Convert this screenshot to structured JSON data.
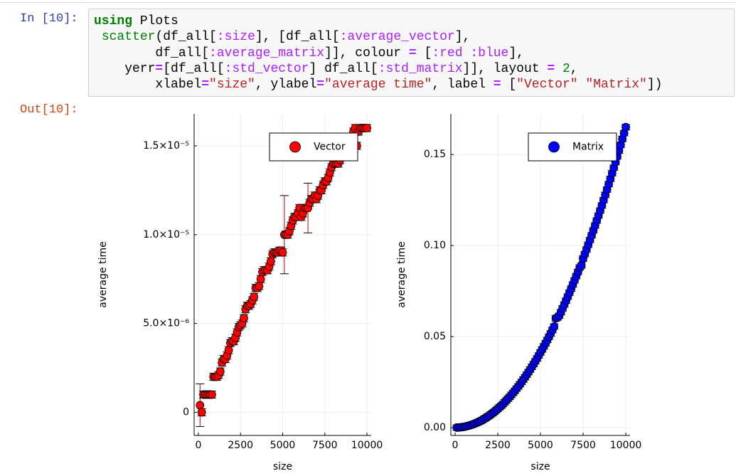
{
  "notebook": {
    "input_prompt": "In [10]:",
    "output_prompt": "Out[10]:",
    "code": [
      "using Plots",
      " scatter(df_all[:size], [df_all[:average_vector],",
      "        df_all[:average_matrix]], colour = [:red :blue],",
      "    yerr=[df_all[:std_vector] df_all[:std_matrix]], layout = 2,",
      "        xlabel=\"size\", ylabel=\"average time\", label = [\"Vector\" \"Matrix\"])"
    ]
  },
  "chart_data": [
    {
      "type": "scatter",
      "xlabel": "size",
      "ylabel": "average time",
      "grid": true,
      "legend": "top right",
      "xlim": [
        -250,
        10250
      ],
      "ylim": [
        -1.3e-06,
        1.68e-05
      ],
      "xticks": [
        0,
        2500,
        5000,
        7500,
        10000
      ],
      "yticks": [
        0,
        {
          "value": 5e-06,
          "label": "5.0×10⁻⁶"
        },
        {
          "value": 1e-05,
          "label": "1.0×10⁻⁵"
        },
        {
          "value": 1.5e-05,
          "label": "1.5×10⁻⁵"
        }
      ],
      "x": [
        100,
        200,
        300,
        400,
        500,
        600,
        700,
        800,
        900,
        1000,
        1100,
        1200,
        1300,
        1400,
        1500,
        1600,
        1700,
        1800,
        1900,
        2000,
        2100,
        2200,
        2300,
        2400,
        2500,
        2600,
        2700,
        2800,
        2900,
        3000,
        3100,
        3200,
        3300,
        3400,
        3500,
        3600,
        3700,
        3800,
        3900,
        4000,
        4100,
        4200,
        4300,
        4400,
        4500,
        4600,
        4700,
        4800,
        4900,
        5000,
        5100,
        5200,
        5300,
        5400,
        5500,
        5600,
        5700,
        5800,
        5900,
        6000,
        6100,
        6200,
        6300,
        6400,
        6500,
        6600,
        6700,
        6800,
        6900,
        7000,
        7100,
        7200,
        7300,
        7400,
        7500,
        7600,
        7700,
        7800,
        7900,
        8000,
        8100,
        8200,
        8300,
        8400,
        8500,
        8600,
        8700,
        8800,
        8900,
        9000,
        9100,
        9200,
        9300,
        9400,
        9500,
        9600,
        9700,
        9800,
        9900,
        10000
      ],
      "series": [
        {
          "name": "Vector",
          "color": "#ff0000",
          "values": [
            4e-07,
            0,
            1e-06,
            1e-06,
            1e-06,
            1e-06,
            1e-06,
            1e-06,
            2e-06,
            2e-06,
            2e-06,
            2.1e-06,
            2.3e-06,
            2.8e-06,
            3e-06,
            3e-06,
            3.2e-06,
            3.5e-06,
            3.9e-06,
            4e-06,
            4e-06,
            4.2e-06,
            4.5e-06,
            4.8e-06,
            4.9e-06,
            5e-06,
            5.3e-06,
            5.8e-06,
            6e-06,
            6e-06,
            6.1e-06,
            6.3e-06,
            6.5e-06,
            7e-06,
            7e-06,
            7.1e-06,
            7.5e-06,
            7.9e-06,
            8e-06,
            8e-06,
            8e-06,
            8.2e-06,
            8.5e-06,
            8.9e-06,
            9e-06,
            9e-06,
            9e-06,
            9.1e-06,
            9.1e-06,
            9e-06,
            1e-05,
            1e-05,
            1e-05,
            1.02e-05,
            1.05e-05,
            1.08e-05,
            1.1e-05,
            1.1e-05,
            1.12e-05,
            1.15e-05,
            1.1e-05,
            1.12e-05,
            1.15e-05,
            1.15e-05,
            1.15e-05,
            1.18e-05,
            1.2e-05,
            1.2e-05,
            1.22e-05,
            1.2e-05,
            1.22e-05,
            1.25e-05,
            1.25e-05,
            1.28e-05,
            1.3e-05,
            1.3e-05,
            1.32e-05,
            1.35e-05,
            1.38e-05,
            1.4e-05,
            1.4e-05,
            1.4e-05,
            1.4e-05,
            1.42e-05,
            1.45e-05,
            1.48e-05,
            1.5e-05,
            1.5e-05,
            1.5e-05,
            1.52e-05,
            1.55e-05,
            1.58e-05,
            1.6e-05,
            1.5e-05,
            1.58e-05,
            1.6e-05,
            1.6e-05,
            1.6e-05,
            1.6e-05,
            1.6e-05
          ],
          "errors": [
            1.2e-06,
            2e-07,
            2e-07,
            2e-07,
            2e-07,
            2e-07,
            2e-07,
            2e-07,
            2e-07,
            2e-07,
            2e-07,
            2e-07,
            2e-07,
            2e-07,
            2e-07,
            2e-07,
            2e-07,
            2e-07,
            2e-07,
            2e-07,
            2e-07,
            2e-07,
            2e-07,
            2e-07,
            2e-07,
            2e-07,
            2e-07,
            2e-07,
            2e-07,
            2e-07,
            2e-07,
            2e-07,
            2e-07,
            2e-07,
            2e-07,
            2e-07,
            2e-07,
            2e-07,
            2e-07,
            2e-07,
            2e-07,
            2e-07,
            2e-07,
            2e-07,
            2e-07,
            2e-07,
            2e-07,
            2e-07,
            2e-07,
            2e-07,
            2.2e-06,
            2e-07,
            2e-07,
            2e-07,
            2e-07,
            2e-07,
            2e-07,
            2e-07,
            2e-07,
            2e-07,
            2e-07,
            2e-07,
            2e-07,
            2e-07,
            1.4e-06,
            2e-07,
            2e-07,
            2e-07,
            2e-07,
            2e-07,
            2e-07,
            2e-07,
            2e-07,
            2e-07,
            2e-07,
            2e-07,
            2e-07,
            2e-07,
            2e-07,
            2e-07,
            2e-07,
            2e-07,
            2e-07,
            2e-07,
            2e-07,
            2e-07,
            2e-07,
            2e-07,
            2e-07,
            2e-07,
            2e-07,
            2e-07,
            2e-07,
            2e-07,
            2e-07,
            2e-07,
            2e-07,
            2e-07,
            2e-07,
            2e-07
          ]
        }
      ]
    },
    {
      "type": "scatter",
      "xlabel": "size",
      "ylabel": "average time",
      "grid": true,
      "legend": "top right",
      "xlim": [
        -250,
        10250
      ],
      "ylim": [
        -0.0043,
        0.1723
      ],
      "xticks": [
        0,
        2500,
        5000,
        7500,
        10000
      ],
      "yticks": [
        {
          "value": 0,
          "label": "0.00"
        },
        0.05,
        {
          "value": 0.1,
          "label": "0.10"
        },
        0.15
      ],
      "x": [
        100,
        200,
        300,
        400,
        500,
        600,
        700,
        800,
        900,
        1000,
        1100,
        1200,
        1300,
        1400,
        1500,
        1600,
        1700,
        1800,
        1900,
        2000,
        2100,
        2200,
        2300,
        2400,
        2500,
        2600,
        2700,
        2800,
        2900,
        3000,
        3100,
        3200,
        3300,
        3400,
        3500,
        3600,
        3700,
        3800,
        3900,
        4000,
        4100,
        4200,
        4300,
        4400,
        4500,
        4600,
        4700,
        4800,
        4900,
        5000,
        5100,
        5200,
        5300,
        5400,
        5500,
        5600,
        5700,
        5800,
        5900,
        6000,
        6100,
        6200,
        6300,
        6400,
        6500,
        6600,
        6700,
        6800,
        6900,
        7000,
        7100,
        7200,
        7300,
        7400,
        7500,
        7600,
        7700,
        7800,
        7900,
        8000,
        8100,
        8200,
        8300,
        8400,
        8500,
        8600,
        8700,
        8800,
        8900,
        9000,
        9100,
        9200,
        9300,
        9400,
        9500,
        9600,
        9700,
        9800,
        9900,
        10000
      ],
      "series": [
        {
          "name": "Matrix",
          "color": "#0000ff",
          "values": [
            2e-05,
            7e-05,
            0.00015,
            0.00026,
            0.00041,
            0.00059,
            0.00081,
            0.00106,
            0.00134,
            0.00165,
            0.002,
            0.0024,
            0.0028,
            0.0032,
            0.0037,
            0.0042,
            0.0048,
            0.0053,
            0.006,
            0.0066,
            0.0073,
            0.008,
            0.0087,
            0.0095,
            0.0103,
            0.0112,
            0.012,
            0.0129,
            0.0139,
            0.0149,
            0.0159,
            0.0169,
            0.018,
            0.0191,
            0.0202,
            0.0214,
            0.0226,
            0.0238,
            0.0251,
            0.0264,
            0.0277,
            0.0291,
            0.0305,
            0.0319,
            0.0334,
            0.0349,
            0.0364,
            0.038,
            0.0396,
            0.0413,
            0.0429,
            0.0446,
            0.0463,
            0.0481,
            0.0499,
            0.0517,
            0.0536,
            0.0555,
            0.06,
            0.0605,
            0.0614,
            0.0634,
            0.0655,
            0.0676,
            0.0697,
            0.0719,
            0.0741,
            0.0763,
            0.0786,
            0.0809,
            0.0832,
            0.0855,
            0.0879,
            0.089,
            0.0928,
            0.0953,
            0.0978,
            0.1004,
            0.103,
            0.1056,
            0.1083,
            0.111,
            0.1137,
            0.1164,
            0.1192,
            0.122,
            0.1249,
            0.1278,
            0.1307,
            0.1337,
            0.1366,
            0.1397,
            0.1427,
            0.1458,
            0.1489,
            0.1521,
            0.1552,
            0.1585,
            0.1617,
            0.165
          ],
          "errors": [
            0.0015,
            0.0015,
            0.0015,
            0.0015,
            0.0015,
            0.0015,
            0.0015,
            0.0015,
            0.0015,
            0.0015,
            0.0015,
            0.0015,
            0.0015,
            0.0015,
            0.0015,
            0.0015,
            0.0015,
            0.0015,
            0.0015,
            0.0015,
            0.0015,
            0.0015,
            0.0015,
            0.0015,
            0.0015,
            0.0015,
            0.0015,
            0.0015,
            0.0015,
            0.0015,
            0.0015,
            0.0015,
            0.0015,
            0.0015,
            0.0015,
            0.0015,
            0.0015,
            0.0015,
            0.0015,
            0.0015,
            0.0015,
            0.0015,
            0.0015,
            0.0015,
            0.0015,
            0.0015,
            0.0015,
            0.0015,
            0.0015,
            0.0015,
            0.0015,
            0.0015,
            0.0015,
            0.0015,
            0.0015,
            0.0015,
            0.0015,
            0.0015,
            0.0015,
            0.0015,
            0.0015,
            0.0015,
            0.0015,
            0.0015,
            0.0015,
            0.0015,
            0.0015,
            0.0015,
            0.0015,
            0.0015,
            0.0015,
            0.0015,
            0.0015,
            0.0015,
            0.0015,
            0.0015,
            0.0015,
            0.0015,
            0.0015,
            0.0015,
            0.0015,
            0.0015,
            0.0015,
            0.0015,
            0.0015,
            0.0015,
            0.0015,
            0.0015,
            0.0015,
            0.0015,
            0.0015,
            0.0015,
            0.0015,
            0.0015,
            0.0015,
            0.0015,
            0.0015,
            0.0015,
            0.0015,
            0.0015
          ]
        }
      ]
    }
  ]
}
